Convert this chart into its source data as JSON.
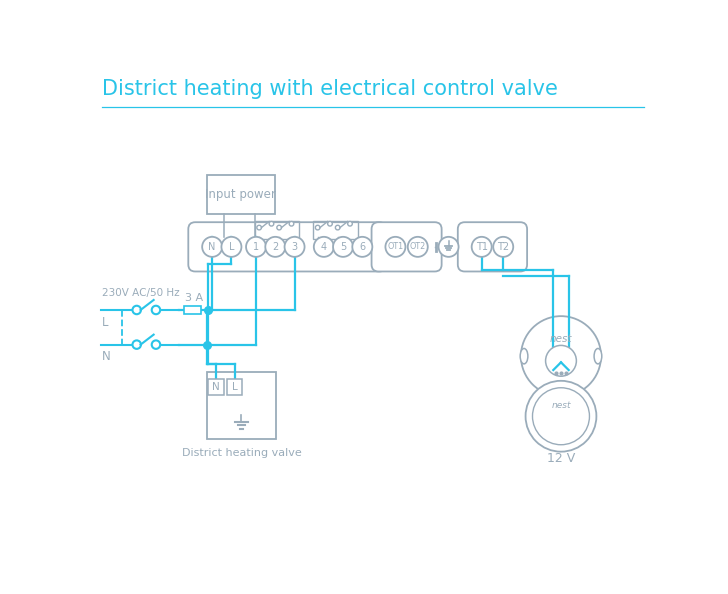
{
  "title": "District heating with electrical control valve",
  "title_color": "#29c4e8",
  "bg_color": "#ffffff",
  "line_color": "#29c4e8",
  "gray": "#9aacba",
  "dark_gray": "#7a8fa0",
  "terminal_labels": [
    "N",
    "L",
    "1",
    "2",
    "3",
    "4",
    "5",
    "6"
  ],
  "ot_labels": [
    "OT1",
    "OT2"
  ],
  "t_labels": [
    "T1",
    "T2"
  ],
  "input_power_label": "Input power",
  "left_label": "230V AC/50 Hz",
  "L_label": "L",
  "N_label": "N",
  "fuse_label": "3 A",
  "valve_label": "District heating valve",
  "nest_label": "12 V"
}
